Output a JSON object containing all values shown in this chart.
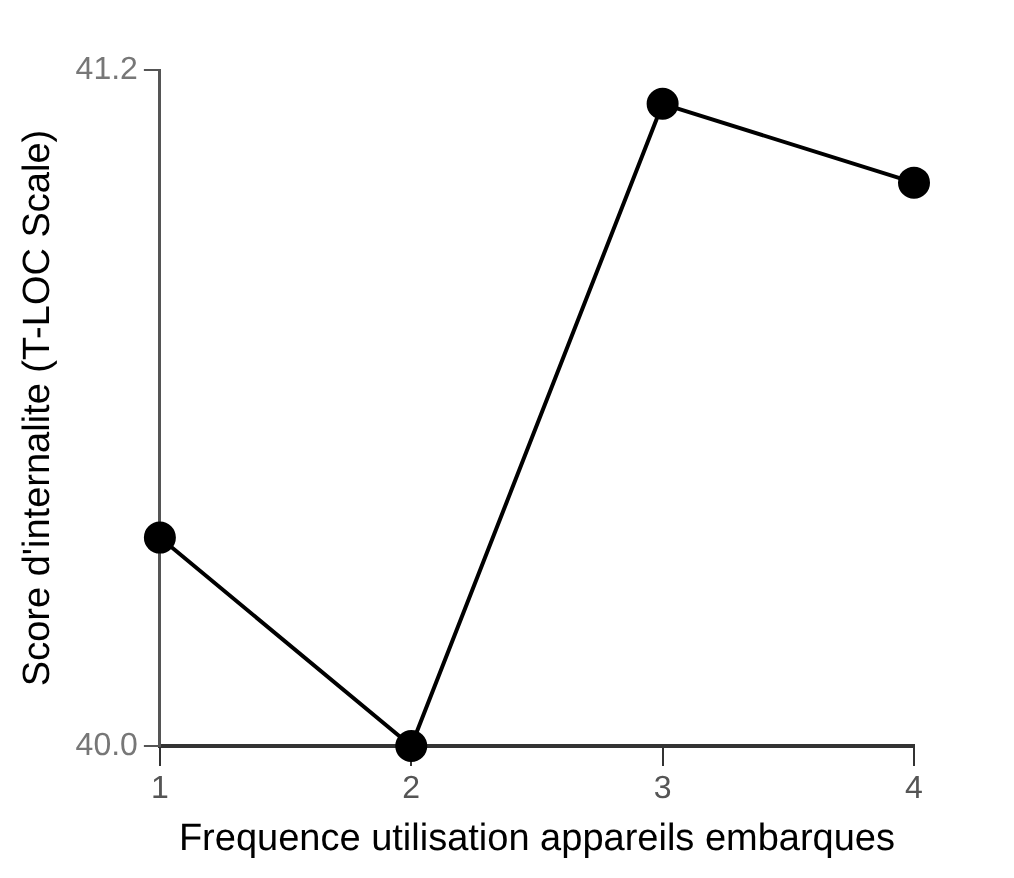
{
  "chart_data": {
    "type": "line",
    "xlabel": "Frequence utilisation appareils embarques",
    "ylabel": "Score d'internalite (T-LOC Scale)",
    "categories": [
      "1",
      "2",
      "3",
      "4"
    ],
    "series": [
      {
        "color": "#000000",
        "values": [
          40.37,
          40.0,
          41.14,
          41.0
        ]
      }
    ],
    "ylim": [
      40.0,
      41.2
    ],
    "yticks": [
      {
        "value": 40.0,
        "label": "40.0"
      },
      {
        "value": 41.2,
        "label": "41.2"
      }
    ],
    "grid": false,
    "legend": false,
    "marker": "circle",
    "line_style": "solid"
  }
}
